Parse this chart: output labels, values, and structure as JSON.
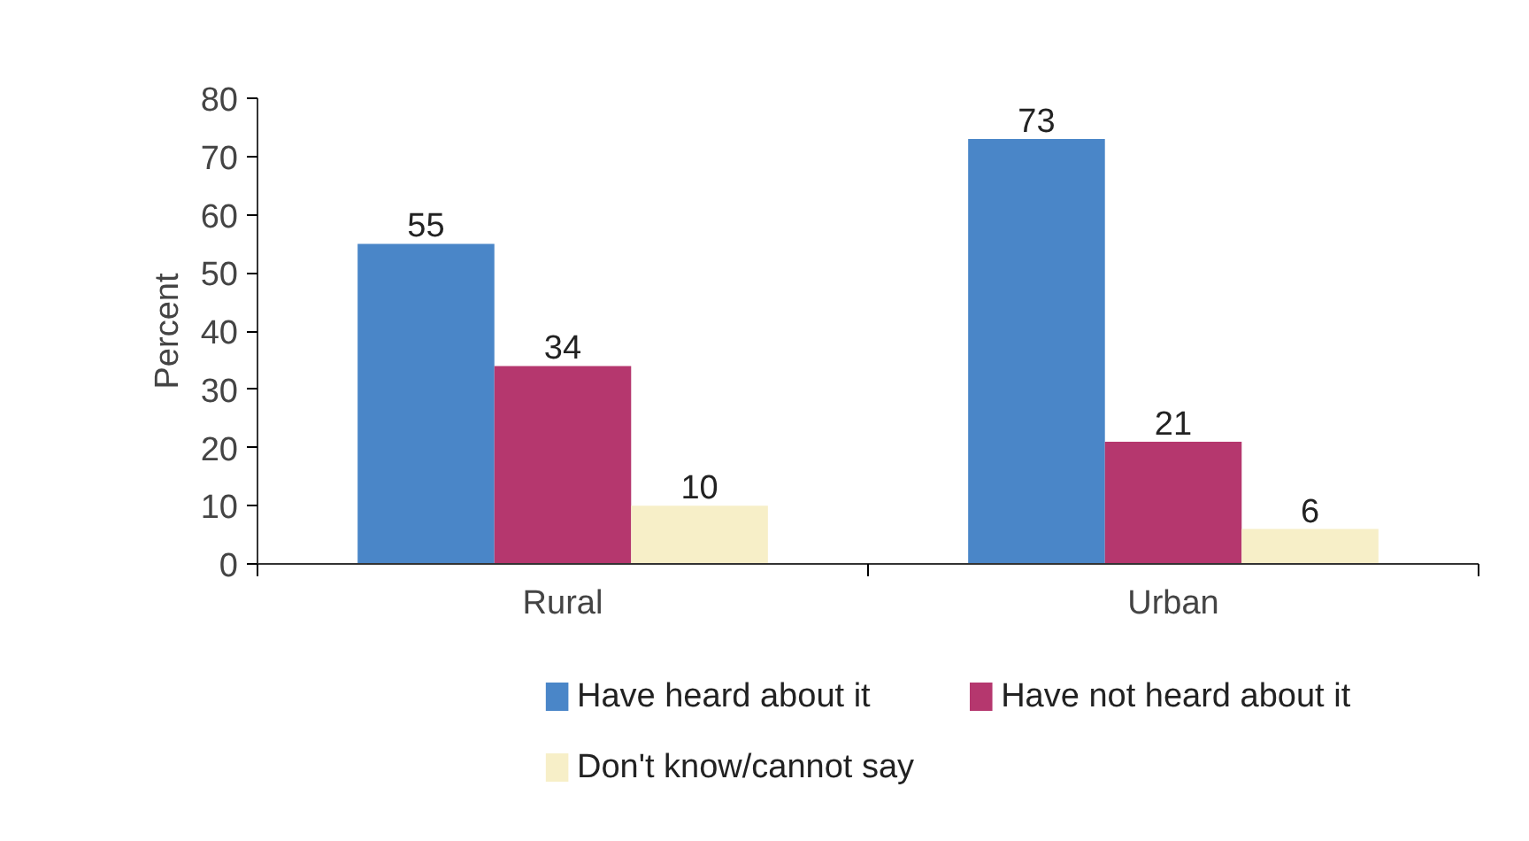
{
  "chart_data": {
    "type": "bar",
    "categories": [
      "Rural",
      "Urban"
    ],
    "ylabel": "Percent",
    "ylim": [
      0,
      80
    ],
    "yticks": [
      0,
      10,
      20,
      30,
      40,
      50,
      60,
      70,
      80
    ],
    "grid": false,
    "legend": "bottom",
    "data_labels": true,
    "series": [
      {
        "name": "Have heard about it",
        "color": "#4a86c8",
        "values": [
          55,
          73
        ]
      },
      {
        "name": "Have not heard about it",
        "color": "#b5376e",
        "values": [
          34,
          21
        ]
      },
      {
        "name": "Don't know/cannot say",
        "color": "#f7efc8",
        "values": [
          10,
          6
        ]
      }
    ]
  }
}
